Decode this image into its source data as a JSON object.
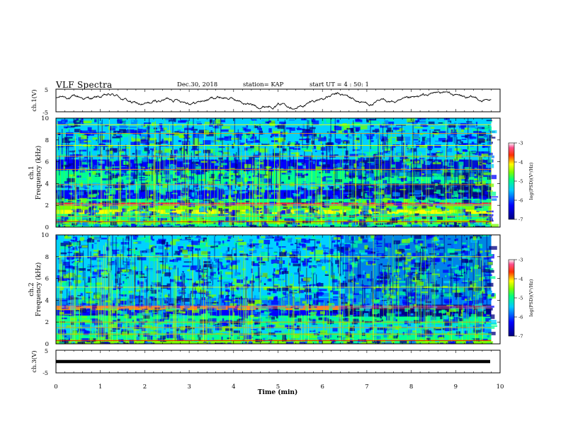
{
  "header": {
    "title": "VLF Spectra",
    "date": "Dec.30, 2018",
    "station": "station= KAP",
    "start": "start  UT =   4 : 50: 1"
  },
  "chart_data": [
    {
      "type": "line",
      "panel": "ch1-waveform",
      "ylabel": "ch.1(V)",
      "ylim": [
        -5,
        5
      ],
      "yticks": [
        "5",
        "-5"
      ],
      "xlim": [
        0,
        10
      ],
      "description_values": {
        "x_end_min": 9.8,
        "amplitude_range_V": [
          -3,
          3
        ]
      }
    },
    {
      "type": "heatmap",
      "panel": "ch1-spectrogram",
      "ylabel": "Frequency (kHz)",
      "channel_label": "ch.1",
      "ylim": [
        0,
        10
      ],
      "yticks": [
        "0",
        "2",
        "4",
        "6",
        "8",
        "10"
      ],
      "xlim": [
        0,
        10
      ],
      "colorbar": {
        "label": "log(PSD)(V²/Hz)",
        "range": [
          -7,
          -3
        ],
        "ticks": [
          "-3",
          "-4",
          "-5",
          "-6",
          "-7"
        ]
      }
    },
    {
      "type": "heatmap",
      "panel": "ch2-spectrogram",
      "ylabel": "Frequency (kHz)",
      "channel_label": "ch.2",
      "ylim": [
        0,
        10
      ],
      "yticks": [
        "0",
        "2",
        "4",
        "6",
        "8",
        "10"
      ],
      "xlim": [
        0,
        10
      ],
      "colorbar": {
        "label": "log(PSD)(V²/Hz)",
        "range": [
          -7,
          -3
        ],
        "ticks": [
          "-3",
          "-4",
          "-5",
          "-6",
          "-7"
        ]
      }
    },
    {
      "type": "line",
      "panel": "ch3-waveform",
      "ylabel": "ch.3(V)",
      "ylim": [
        -5,
        5
      ],
      "yticks": [
        "5",
        "-5"
      ],
      "xlim": [
        0,
        10
      ],
      "level_V": 0
    }
  ],
  "xaxis": {
    "label": "Time  (min)",
    "ticks": [
      "0",
      "1",
      "2",
      "3",
      "4",
      "5",
      "6",
      "7",
      "8",
      "9",
      "10"
    ],
    "range": [
      0,
      10
    ],
    "data_end": 9.8
  },
  "colors": {
    "line": "#000000",
    "colormap": [
      "#000080",
      "#0000ff",
      "#0078ff",
      "#00d2ff",
      "#00ff96",
      "#78ff00",
      "#ffff00",
      "#ff9600",
      "#ff0000",
      "#ff4a8a",
      "#ffffff"
    ]
  }
}
